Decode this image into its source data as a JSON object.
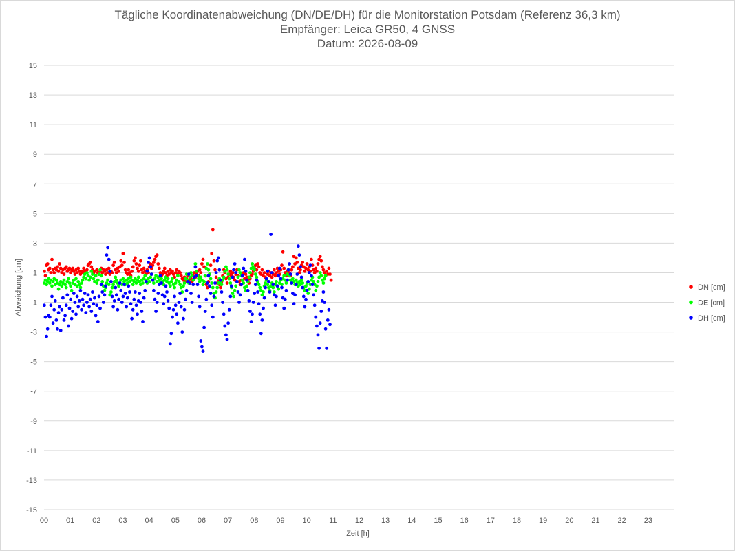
{
  "title_lines": [
    "Tägliche Koordinatenabweichung (DN/DE/DH) für die Monitorstation Potsdam (Referenz 36,3 km)",
    "Empfänger: Leica GR50, 4 GNSS",
    "Datum: 2026-08-09"
  ],
  "chart_data": {
    "type": "scatter",
    "title": "Tägliche Koordinatenabweichung (DN/DE/DH) für die Monitorstation Potsdam (Referenz 36,3 km)",
    "subtitle": [
      "Empfänger: Leica GR50, 4 GNSS",
      "Datum: 2026-08-09"
    ],
    "xlabel": "Zeit [h]",
    "ylabel": "Abweichung [cm]",
    "xlim": [
      0,
      24
    ],
    "ylim": [
      -15,
      15
    ],
    "x_tick_labels": [
      "00",
      "01",
      "02",
      "03",
      "04",
      "05",
      "06",
      "07",
      "08",
      "09",
      "10",
      "11",
      "12",
      "13",
      "14",
      "15",
      "16",
      "17",
      "18",
      "19",
      "20",
      "21",
      "22",
      "23"
    ],
    "y_ticks": [
      15,
      13,
      11,
      9,
      7,
      5,
      3,
      1,
      -1,
      -3,
      -5,
      -7,
      -9,
      -11,
      -13,
      -15
    ],
    "grid": true,
    "legend_position": "right",
    "x_step_hours": 0.04167,
    "series": [
      {
        "name": "DN [cm]",
        "color": "#ff0000",
        "values": [
          1.1,
          0.8,
          1.5,
          1.6,
          1.2,
          1.3,
          1.0,
          1.9,
          1.2,
          1.0,
          1.3,
          1.2,
          1.4,
          1.1,
          1.6,
          1.3,
          1.0,
          1.2,
          0.9,
          1.3,
          1.4,
          1.1,
          1.2,
          1.3,
          1.0,
          1.2,
          1.3,
          1.1,
          0.9,
          1.2,
          1.0,
          1.3,
          1.1,
          0.9,
          1.1,
          1.0,
          1.3,
          1.1,
          1.0,
          1.2,
          1.5,
          1.6,
          1.7,
          1.4,
          1.2,
          1.0,
          1.1,
          0.8,
          1.2,
          1.0,
          0.9,
          1.1,
          1.3,
          1.0,
          1.2,
          1.1,
          0.9,
          1.2,
          1.0,
          1.3,
          0.9,
          1.1,
          1.0,
          1.5,
          1.7,
          1.2,
          1.0,
          1.3,
          1.1,
          1.4,
          1.8,
          1.5,
          2.3,
          1.7,
          1.2,
          1.0,
          0.9,
          1.2,
          1.0,
          0.8,
          1.1,
          1.4,
          1.8,
          2.0,
          1.6,
          1.3,
          1.1,
          1.5,
          1.8,
          1.2,
          1.0,
          1.3,
          1.1,
          0.9,
          1.2,
          1.0,
          1.4,
          1.6,
          1.3,
          1.5,
          1.7,
          1.9,
          2.1,
          2.2,
          1.6,
          1.3,
          1.0,
          0.8,
          0.9,
          1.1,
          1.3,
          1.0,
          0.8,
          1.1,
          0.9,
          1.2,
          1.0,
          1.1,
          0.9,
          0.7,
          1.0,
          1.2,
          0.9,
          1.1,
          1.0,
          0.8,
          0.6,
          0.5,
          0.7,
          0.4,
          0.6,
          0.8,
          0.5,
          0.3,
          0.6,
          0.4,
          0.8,
          1.0,
          0.7,
          0.9,
          1.1,
          0.8,
          1.2,
          1.0,
          1.6,
          1.9,
          1.4,
          0.8,
          0.2,
          0.0,
          0.4,
          0.9,
          1.5,
          2.3,
          3.9,
          1.8,
          1.2,
          0.7,
          0.3,
          0.5,
          0.2,
          0.0,
          0.4,
          0.8,
          1.2,
          1.0,
          0.6,
          0.3,
          0.7,
          0.9,
          1.1,
          0.8,
          1.0,
          0.7,
          0.5,
          0.9,
          1.2,
          0.8,
          0.4,
          0.2,
          0.5,
          0.8,
          1.0,
          0.6,
          0.9,
          0.7,
          0.5,
          0.3,
          0.6,
          0.8,
          0.9,
          1.1,
          1.3,
          1.5,
          1.2,
          1.6,
          1.4,
          1.0,
          0.9,
          1.2,
          0.8,
          1.0,
          0.7,
          0.5,
          0.9,
          1.1,
          0.8,
          1.0,
          0.7,
          0.9,
          1.2,
          0.8,
          1.0,
          1.3,
          1.1,
          0.9,
          1.2,
          1.5,
          2.4,
          1.3,
          1.0,
          0.8,
          1.1,
          0.9,
          1.0,
          0.8,
          1.2,
          1.4,
          2.1,
          1.6,
          2.0,
          1.7,
          1.3,
          1.0,
          1.2,
          1.5,
          1.7,
          1.4,
          1.1,
          1.3,
          1.6,
          1.2,
          1.4,
          1.1,
          1.9,
          1.5,
          1.2,
          1.0,
          1.3,
          1.1,
          1.6,
          1.9,
          2.1,
          1.8,
          1.4,
          1.2,
          1.0,
          0.8,
          1.1,
          0.9,
          1.3,
          0.9,
          0.5
        ]
      },
      {
        "name": "DE [cm]",
        "color": "#00ff00",
        "values": [
          0.3,
          0.5,
          0.2,
          0.4,
          0.6,
          0.3,
          0.5,
          0.1,
          0.4,
          0.6,
          0.2,
          0.5,
          0.3,
          -0.1,
          0.2,
          0.4,
          0.1,
          0.3,
          0.5,
          0.2,
          0.0,
          0.4,
          0.6,
          0.3,
          0.1,
          -0.2,
          0.3,
          0.5,
          0.2,
          0.6,
          0.1,
          0.4,
          0.2,
          0.0,
          0.3,
          0.5,
          0.7,
          0.9,
          0.6,
          1.0,
          0.8,
          0.5,
          0.7,
          1.1,
          0.9,
          0.6,
          0.4,
          0.8,
          0.3,
          0.5,
          0.9,
          1.2,
          0.8,
          0.4,
          0.1,
          -0.2,
          0.0,
          0.3,
          0.5,
          0.2,
          -0.5,
          -0.3,
          0.0,
          0.2,
          0.4,
          0.7,
          0.5,
          0.3,
          0.1,
          0.3,
          0.5,
          0.2,
          0.6,
          0.4,
          0.2,
          0.5,
          0.3,
          0.6,
          0.4,
          0.7,
          0.5,
          0.2,
          0.4,
          0.6,
          0.3,
          0.5,
          0.7,
          0.4,
          0.2,
          0.5,
          0.3,
          0.6,
          0.8,
          0.5,
          0.3,
          0.6,
          0.4,
          0.7,
          0.9,
          0.5,
          0.3,
          0.6,
          0.8,
          0.4,
          0.7,
          0.5,
          0.3,
          0.6,
          0.4,
          0.2,
          0.5,
          0.7,
          0.4,
          0.6,
          0.3,
          0.1,
          0.4,
          0.6,
          0.2,
          0.0,
          0.3,
          0.5,
          0.8,
          0.4,
          0.2,
          0.0,
          -0.3,
          0.1,
          0.3,
          0.6,
          0.9,
          0.5,
          0.3,
          0.7,
          1.0,
          0.8,
          0.5,
          0.6,
          1.6,
          1.1,
          0.8,
          0.6,
          0.4,
          0.7,
          0.5,
          0.2,
          0.4,
          0.8,
          1.3,
          1.6,
          1.2,
          0.9,
          0.6,
          0.3,
          0.0,
          -0.4,
          -0.7,
          -0.3,
          0.0,
          0.3,
          0.6,
          0.4,
          0.2,
          0.5,
          0.7,
          1.1,
          1.4,
          1.2,
          0.9,
          0.6,
          0.3,
          0.0,
          -0.4,
          -0.6,
          -0.2,
          0.1,
          0.4,
          0.7,
          1.2,
          1.0,
          0.8,
          0.5,
          0.3,
          0.0,
          -0.2,
          0.1,
          0.4,
          0.7,
          1.0,
          1.3,
          1.6,
          1.4,
          1.2,
          0.9,
          0.7,
          0.4,
          0.2,
          0.0,
          -0.2,
          -0.5,
          -0.3,
          0.1,
          0.3,
          0.5,
          0.2,
          0.0,
          -0.2,
          0.1,
          0.3,
          0.0,
          -0.3,
          0.2,
          0.4,
          0.1,
          -0.1,
          0.3,
          0.5,
          0.2,
          0.6,
          0.8,
          0.5,
          0.3,
          0.9,
          1.2,
          0.8,
          0.5,
          0.3,
          0.6,
          0.4,
          0.2,
          0.5,
          0.3,
          0.1,
          0.4,
          0.2,
          0.5,
          0.3,
          0.0,
          -0.2,
          0.1,
          0.3,
          -0.4,
          -0.1,
          0.2,
          0.5,
          0.7,
          0.4,
          0.2,
          -0.2,
          0.1,
          0.4,
          0.7,
          1.0,
          0.8,
          0.5,
          0.3,
          0.6,
          0.8
        ]
      },
      {
        "name": "DH [cm]",
        "color": "#0000ff",
        "values": [
          -1.2,
          -2.0,
          -3.3,
          -2.8,
          -1.9,
          -2.0,
          -1.2,
          -0.6,
          -2.4,
          -1.5,
          -0.9,
          -2.2,
          -2.8,
          -1.7,
          -1.3,
          -2.9,
          -1.5,
          -0.7,
          -2.2,
          -1.9,
          -1.2,
          -0.5,
          -2.6,
          -1.4,
          -0.8,
          -2.1,
          -1.6,
          -0.4,
          -1.0,
          -1.8,
          -0.6,
          -1.3,
          -0.9,
          -0.2,
          -1.5,
          -0.8,
          -1.2,
          -0.4,
          -1.7,
          -1.0,
          -0.5,
          -1.3,
          -0.8,
          -1.6,
          -0.3,
          -1.1,
          -0.7,
          -1.9,
          -1.2,
          -2.3,
          -0.6,
          -1.4,
          0.2,
          -0.3,
          -1.0,
          -0.5,
          0.1,
          2.2,
          2.7,
          1.9,
          1.1,
          0.4,
          -0.6,
          -1.3,
          -0.9,
          0.0,
          -0.5,
          -1.5,
          -0.8,
          0.3,
          -0.2,
          -1.0,
          -0.6,
          0.2,
          -0.4,
          -1.3,
          -0.7,
          0.1,
          -0.3,
          -1.1,
          -2.1,
          -1.5,
          -0.8,
          -0.3,
          -1.2,
          -1.8,
          -0.9,
          -0.4,
          -1.0,
          -1.6,
          -2.3,
          -0.7,
          -0.2,
          0.4,
          1.1,
          1.7,
          2.0,
          1.4,
          0.9,
          0.5,
          -0.2,
          -0.8,
          -1.6,
          -1.0,
          -0.4,
          0.2,
          0.8,
          0.3,
          -0.5,
          -1.1,
          -0.6,
          0.1,
          -0.3,
          -0.9,
          -1.4,
          -3.8,
          -3.1,
          -2.0,
          -1.5,
          -0.6,
          -1.2,
          -1.8,
          -2.4,
          -1.0,
          -0.4,
          -1.3,
          -3.0,
          -2.1,
          -1.5,
          -0.8,
          -0.2,
          0.4,
          0.9,
          0.3,
          -0.4,
          -1.0,
          0.2,
          0.7,
          1.4,
          0.8,
          0.2,
          -0.6,
          -1.3,
          -3.6,
          -4.0,
          -4.3,
          -2.7,
          -1.6,
          -0.8,
          0.3,
          0.8,
          0.1,
          -0.4,
          -1.2,
          -2.0,
          -0.6,
          0.3,
          1.0,
          1.8,
          2.0,
          1.2,
          0.5,
          -0.3,
          -1.0,
          -1.8,
          -2.6,
          -3.2,
          -3.5,
          -2.4,
          -1.5,
          -0.6,
          0.1,
          0.7,
          1.2,
          1.6,
          1.0,
          0.4,
          -0.3,
          -1.0,
          -0.5,
          0.2,
          0.8,
          1.3,
          1.9,
          1.1,
          0.5,
          -0.2,
          -0.9,
          -1.6,
          -2.3,
          -1.8,
          -1.0,
          -0.4,
          0.2,
          0.5,
          -0.3,
          -1.1,
          -1.8,
          -3.1,
          -2.2,
          -1.4,
          -0.7,
          0.0,
          0.6,
          1.1,
          0.4,
          -0.3,
          3.6,
          1.0,
          0.2,
          -0.5,
          -1.2,
          -0.6,
          0.1,
          0.8,
          1.3,
          0.6,
          0.0,
          -0.7,
          -1.4,
          -0.8,
          -0.2,
          0.5,
          1.2,
          1.6,
          0.9,
          0.3,
          -0.4,
          -1.1,
          -0.5,
          0.2,
          0.9,
          2.8,
          2.2,
          1.4,
          0.7,
          0.0,
          -0.6,
          -1.3,
          -0.8,
          -0.2,
          0.4,
          1.0,
          1.5,
          0.8,
          0.2,
          -0.5,
          -1.2,
          -2.0,
          -2.6,
          -3.2,
          -4.1,
          -2.4,
          -1.6,
          -0.9,
          -0.3,
          -1.0,
          -2.8,
          -4.1,
          -2.2,
          -1.5,
          -2.5
        ]
      }
    ]
  }
}
